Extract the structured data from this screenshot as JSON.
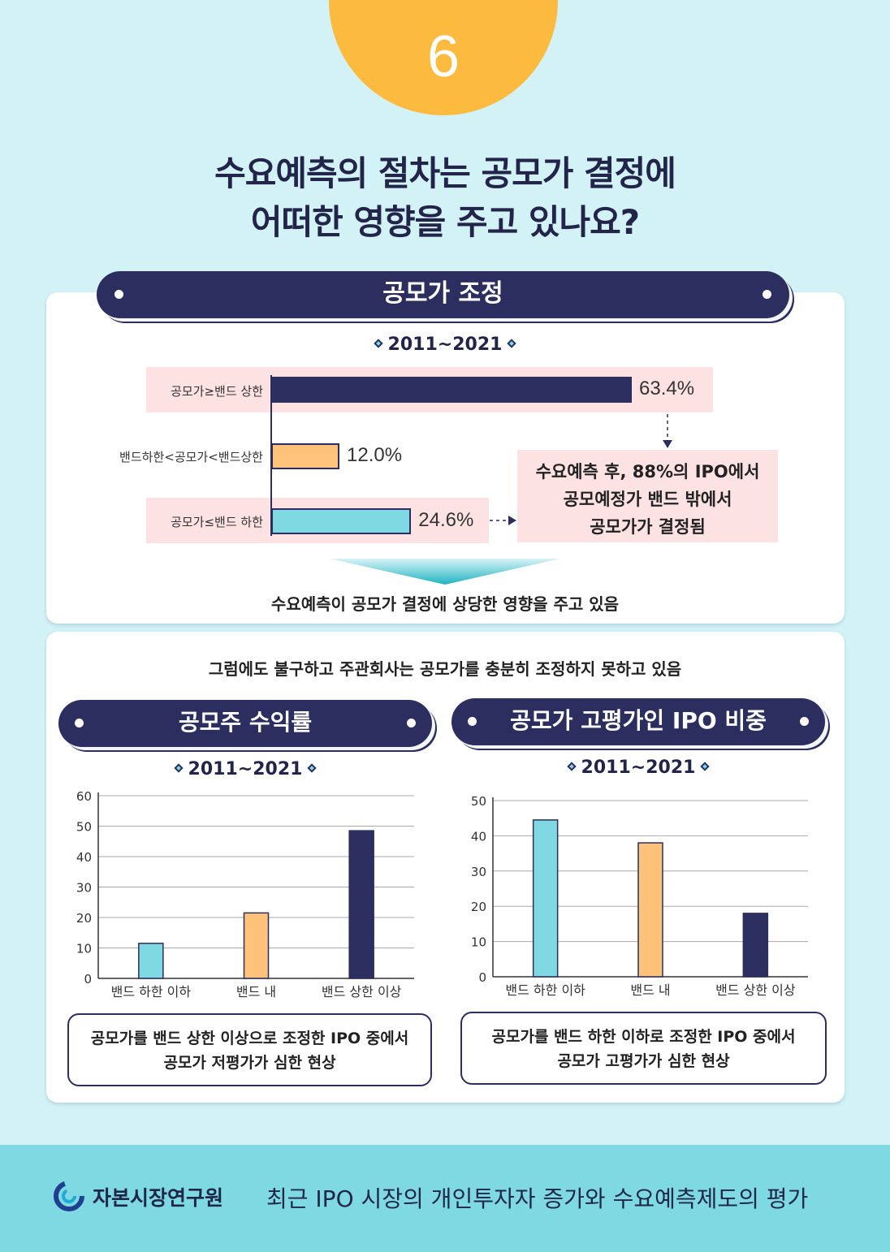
{
  "badge_number": "6",
  "title": {
    "line1": "수요예측의 절차는 공모가 결정에",
    "line2": "어떠한 영향을 주고 있나요?"
  },
  "section1": {
    "banner": "공모가 조정",
    "period": "2011~2021",
    "note": [
      "수요예측 후, 88%의 IPO에서",
      "공모예정가 밴드 밖에서",
      "공모가가 결정됨"
    ],
    "conclusion": "수요예측이 공모가 결정에 상당한 영향을 주고 있음"
  },
  "section2": {
    "intro": "그럼에도 불구하고 주관회사는 공모가를 충분히 조정하지 못하고 있음",
    "left": {
      "banner": "공모주 수익률",
      "period": "2011~2021",
      "caption": [
        "공모가를 밴드 상한 이상으로 조정한  IPO 중에서",
        "공모가 저평가가 심한 현상"
      ]
    },
    "right": {
      "banner": "공모가 고평가인 IPO 비중",
      "period": "2011~2021",
      "caption": [
        "공모가를 밴드 하한 이하로 조정한  IPO 중에서",
        "공모가 고평가가 심한 현상"
      ]
    }
  },
  "footer": {
    "org": "자본시장연구원",
    "title": "최근 IPO 시장의 개인투자자 증가와 수요예측제도의 평가"
  },
  "colors": {
    "navy": "#2c2e5f",
    "orange": "#ffc27b",
    "cyan": "#7fd9e2",
    "badge": "#fcbb3e"
  },
  "chart_data": [
    {
      "type": "bar",
      "orientation": "horizontal",
      "categories": [
        "공모가≥밴드 상한",
        "밴드하한<공모가<밴드상한",
        "공모가≤밴드 하한"
      ],
      "values": [
        63.4,
        12.0,
        24.6
      ],
      "value_labels": [
        "63.4%",
        "12.0%",
        "24.6%"
      ],
      "xlim": [
        0,
        63.4
      ]
    },
    {
      "type": "bar",
      "categories": [
        "밴드 하한 이하",
        "밴드 내",
        "밴드 상한 이상"
      ],
      "values": [
        11.5,
        21.5,
        48.5
      ],
      "ylim": [
        0,
        60
      ],
      "yticks": [
        0,
        10,
        20,
        30,
        40,
        50,
        60
      ],
      "grid": true
    },
    {
      "type": "bar",
      "categories": [
        "밴드 하한 이하",
        "밴드 내",
        "밴드 상한 이상"
      ],
      "values": [
        44.5,
        38,
        18
      ],
      "ylim": [
        0,
        50
      ],
      "yticks": [
        0,
        10,
        20,
        30,
        40,
        50
      ],
      "grid": true
    }
  ]
}
